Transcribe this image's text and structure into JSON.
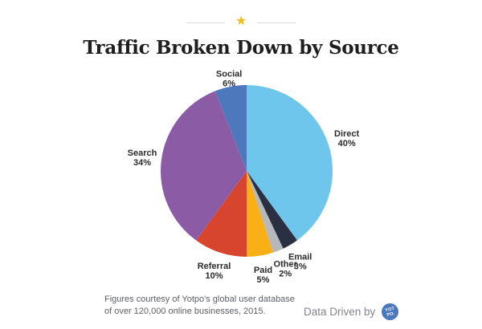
{
  "header": {
    "title": "Traffic Broken Down by Source",
    "star_icon": "★",
    "star_color": "#efbe1b",
    "ornament_line_color": "#d9d9d9",
    "title_color": "#1e1e1e"
  },
  "chart_data": {
    "type": "pie",
    "title": "Traffic Broken Down by Source",
    "start_angle_deg": 0,
    "direction": "clockwise",
    "label_color": "#2b2b2b",
    "slices": [
      {
        "label": "Direct",
        "value": 40,
        "pct_label": "40%",
        "color": "#6ec6ec"
      },
      {
        "label": "Email",
        "value": 3,
        "pct_label": "3%",
        "color": "#2b2f42"
      },
      {
        "label": "Other",
        "value": 2,
        "pct_label": "2%",
        "color": "#b7b8bb"
      },
      {
        "label": "Paid",
        "value": 5,
        "pct_label": "5%",
        "color": "#f9b016"
      },
      {
        "label": "Referral",
        "value": 10,
        "pct_label": "10%",
        "color": "#d7452e"
      },
      {
        "label": "Search",
        "value": 34,
        "pct_label": "34%",
        "color": "#8c5ba6"
      },
      {
        "label": "Social",
        "value": 6,
        "pct_label": "6%",
        "color": "#4d78bc"
      }
    ]
  },
  "footer": {
    "source_line1": "Figures courtesy of Yotpo's global user database",
    "source_line2": "of over 120,000 online businesses, 2015.",
    "attribution": "Data Driven by",
    "logo_line1": "YOT",
    "logo_line2": "PO.",
    "logo_color": "#4a77be"
  }
}
